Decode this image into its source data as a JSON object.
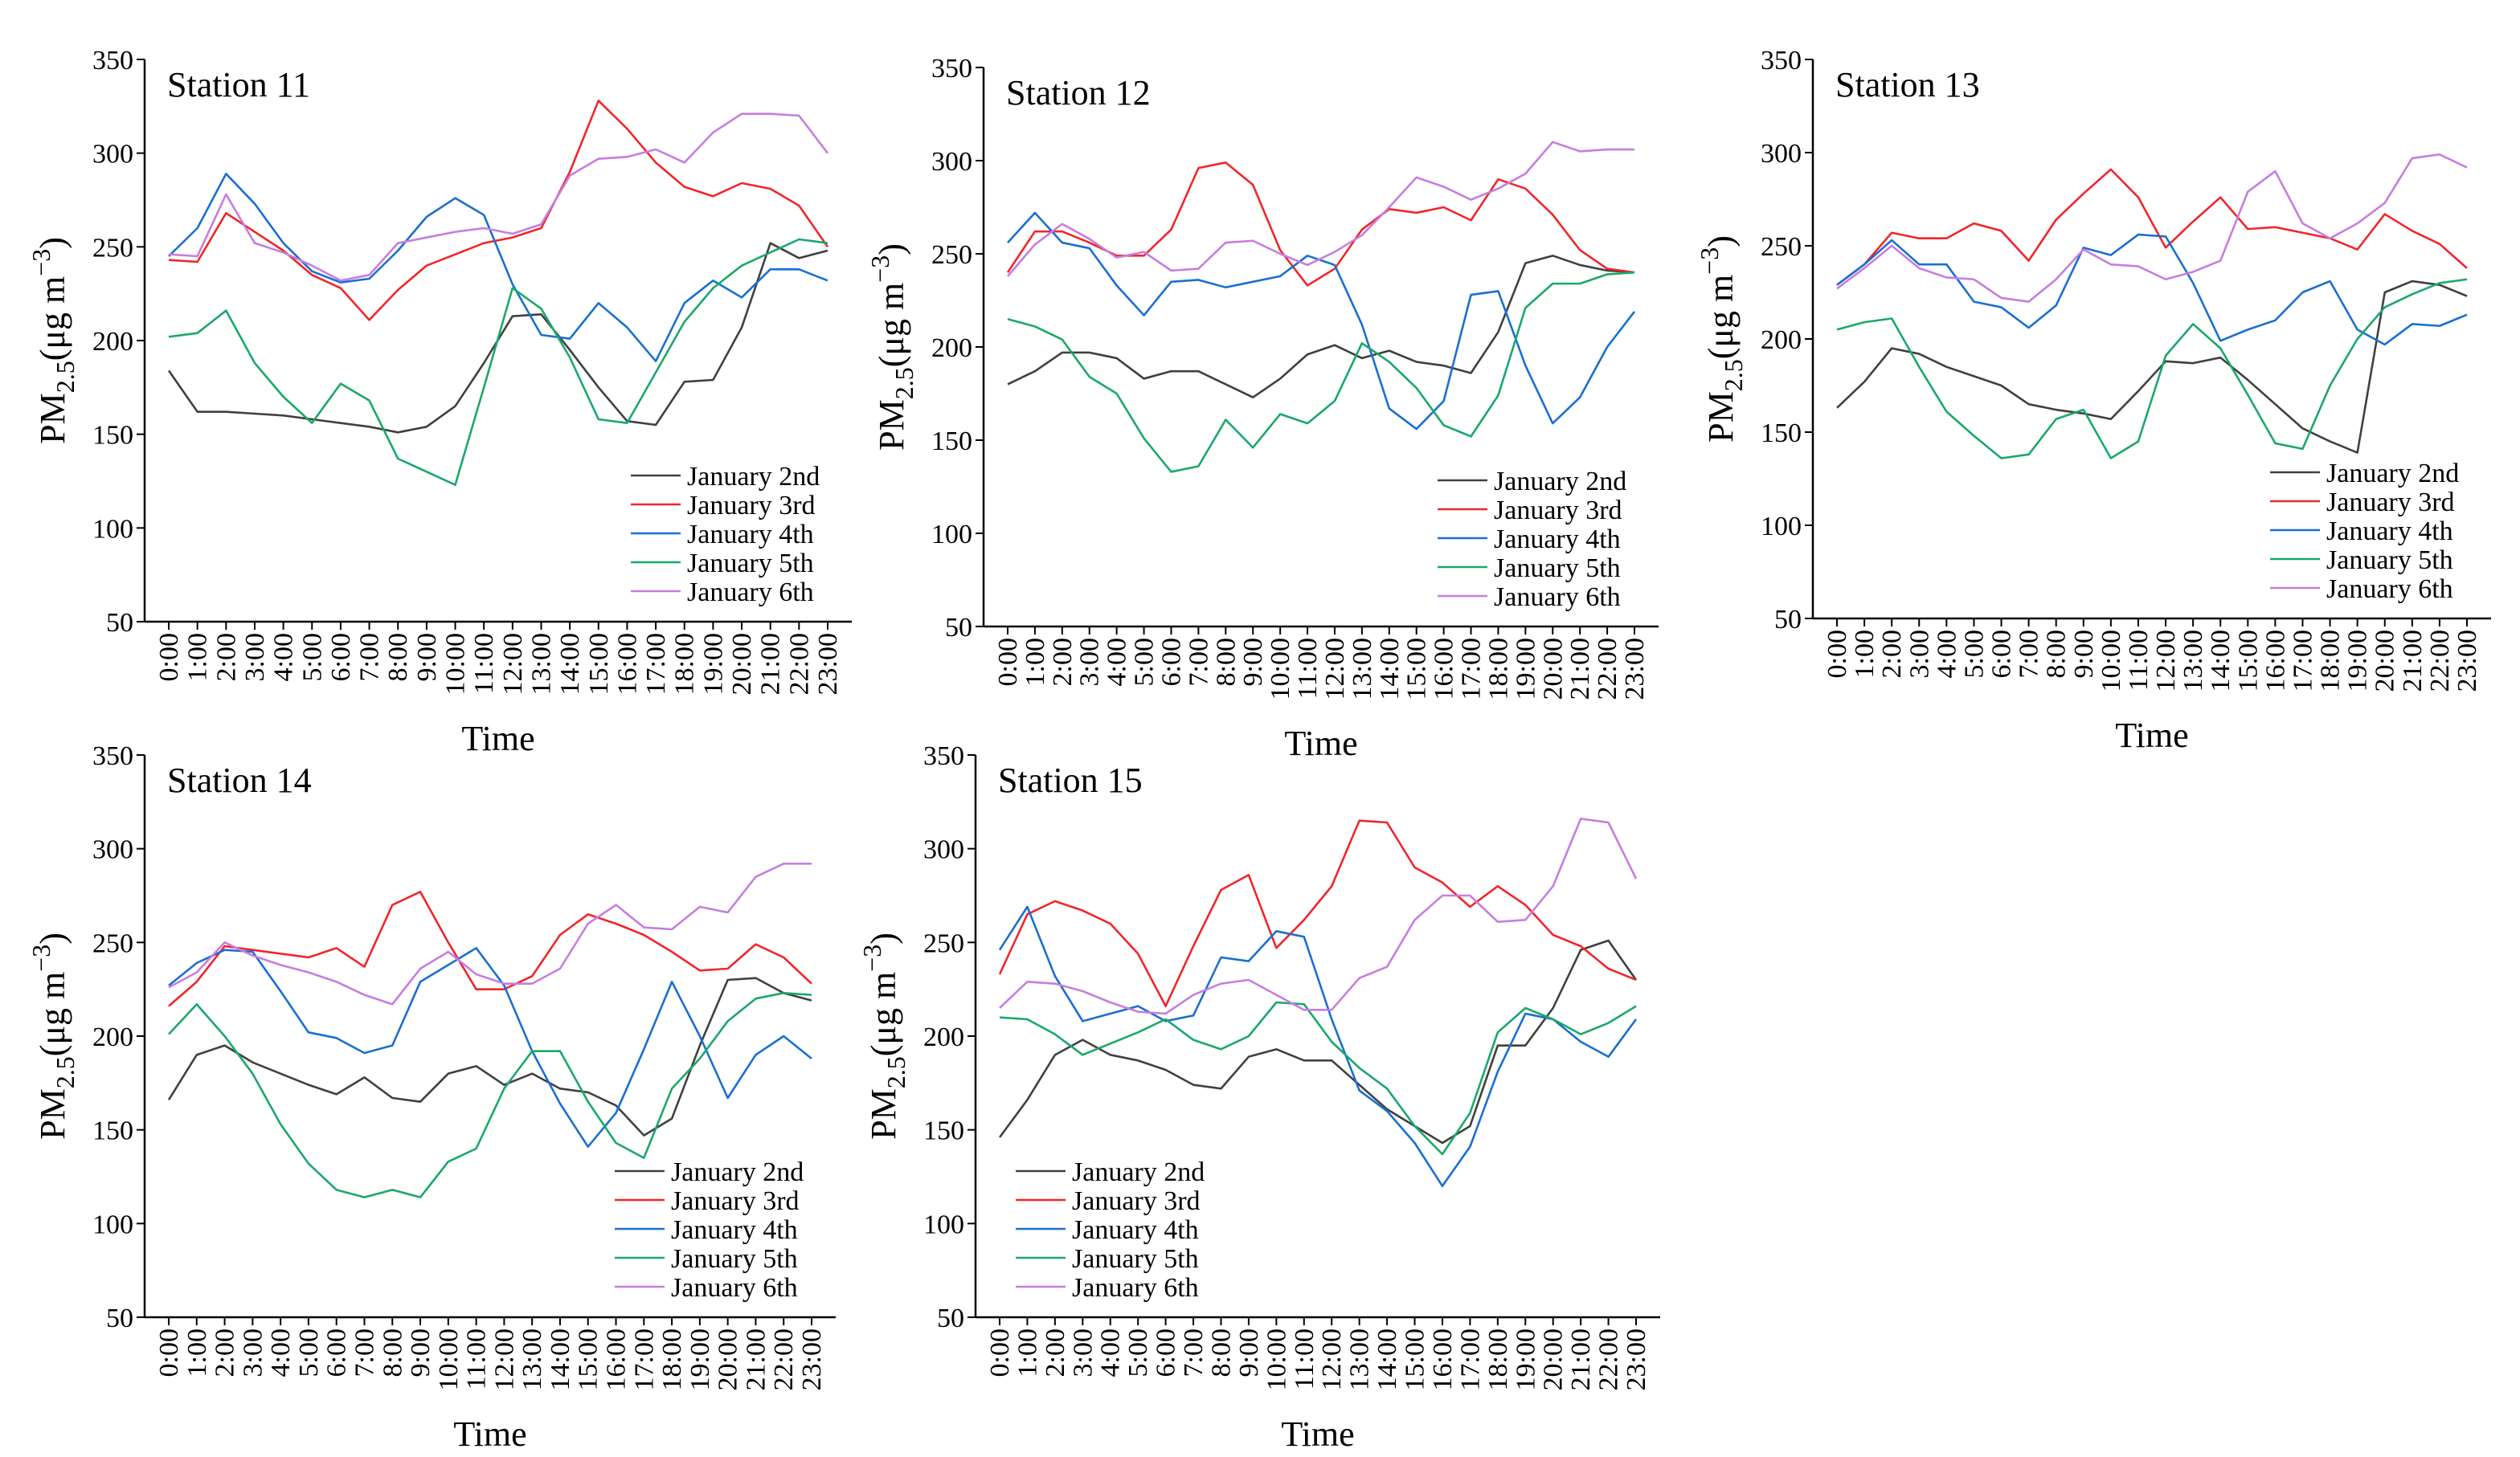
{
  "chart_data": [
    {
      "type": "line",
      "title": "Station 11",
      "xlabel": "Time",
      "ylabel": [
        "PM",
        "2.5",
        "(μg m",
        "−3",
        ")"
      ],
      "categories": [
        "0:00",
        "1:00",
        "2:00",
        "3:00",
        "4:00",
        "5:00",
        "6:00",
        "7:00",
        "8:00",
        "9:00",
        "10:00",
        "11:00",
        "12:00",
        "13:00",
        "14:00",
        "15:00",
        "16:00",
        "17:00",
        "18:00",
        "19:00",
        "20:00",
        "21:00",
        "22:00",
        "23:00"
      ],
      "ylim": [
        50,
        350
      ],
      "yticks": [
        50,
        100,
        150,
        200,
        250,
        300,
        350
      ],
      "legend": "lower right",
      "series": [
        {
          "name": "January 2nd",
          "color": "#404040",
          "values": [
            184,
            162,
            162,
            161,
            160,
            158,
            156,
            154,
            151,
            154,
            165,
            188,
            213,
            214,
            195,
            175,
            157,
            155,
            178,
            179,
            207,
            252,
            244,
            248
          ]
        },
        {
          "name": "January 3rd",
          "color": "#f0262a",
          "values": [
            243,
            242,
            268,
            258,
            248,
            235,
            228,
            211,
            227,
            240,
            246,
            252,
            255,
            260,
            290,
            328,
            313,
            295,
            282,
            277,
            284,
            281,
            272,
            250
          ]
        },
        {
          "name": "January 4th",
          "color": "#1a6fd1",
          "values": [
            245,
            260,
            289,
            273,
            252,
            237,
            231,
            233,
            248,
            266,
            276,
            267,
            230,
            203,
            201,
            220,
            207,
            189,
            220,
            232,
            223,
            238,
            238,
            232
          ]
        },
        {
          "name": "January 5th",
          "color": "#1aa86a",
          "values": [
            202,
            204,
            216,
            188,
            170,
            156,
            177,
            168,
            137,
            130,
            123,
            175,
            228,
            217,
            191,
            158,
            156,
            183,
            210,
            228,
            240,
            247,
            254,
            252
          ]
        },
        {
          "name": "January 6th",
          "color": "#c77de0",
          "values": [
            246,
            245,
            278,
            252,
            247,
            240,
            232,
            235,
            252,
            255,
            258,
            260,
            257,
            262,
            288,
            297,
            298,
            302,
            295,
            311,
            321,
            321,
            320,
            300
          ]
        }
      ]
    },
    {
      "type": "line",
      "title": "Station 12",
      "xlabel": "Time",
      "ylabel": [
        "PM",
        "2.5",
        "(μg m",
        "−3",
        ")"
      ],
      "categories": [
        "0:00",
        "1:00",
        "2:00",
        "3:00",
        "4:00",
        "5:00",
        "6:00",
        "7:00",
        "8:00",
        "9:00",
        "10:00",
        "11:00",
        "12:00",
        "13:00",
        "14:00",
        "15:00",
        "16:00",
        "17:00",
        "18:00",
        "19:00",
        "20:00",
        "21:00",
        "22:00",
        "23:00"
      ],
      "ylim": [
        50,
        350
      ],
      "yticks": [
        50,
        100,
        150,
        200,
        250,
        300,
        350
      ],
      "legend": "lower right",
      "series": [
        {
          "name": "January 2nd",
          "color": "#404040",
          "values": [
            180,
            187,
            197,
            197,
            194,
            183,
            187,
            187,
            180,
            173,
            183,
            196,
            201,
            194,
            198,
            192,
            190,
            186,
            208,
            245,
            249,
            244,
            241,
            240
          ]
        },
        {
          "name": "January 3rd",
          "color": "#f0262a",
          "values": [
            240,
            262,
            262,
            256,
            249,
            249,
            263,
            296,
            299,
            287,
            252,
            233,
            242,
            263,
            274,
            272,
            275,
            268,
            290,
            285,
            271,
            252,
            242,
            240
          ]
        },
        {
          "name": "January 4th",
          "color": "#1a6fd1",
          "values": [
            256,
            272,
            256,
            253,
            233,
            217,
            235,
            236,
            232,
            235,
            238,
            249,
            244,
            212,
            167,
            156,
            171,
            228,
            230,
            190,
            159,
            173,
            200,
            219
          ]
        },
        {
          "name": "January 5th",
          "color": "#1aa86a",
          "values": [
            215,
            211,
            204,
            184,
            175,
            151,
            133,
            136,
            161,
            146,
            164,
            159,
            171,
            202,
            192,
            178,
            158,
            152,
            174,
            221,
            234,
            234,
            239,
            240
          ]
        },
        {
          "name": "January 6th",
          "color": "#c77de0",
          "values": [
            238,
            255,
            266,
            258,
            248,
            251,
            241,
            242,
            256,
            257,
            250,
            244,
            251,
            260,
            275,
            291,
            286,
            279,
            285,
            293,
            310,
            305,
            306,
            306
          ]
        }
      ]
    },
    {
      "type": "line",
      "title": "Station 13",
      "xlabel": "Time",
      "ylabel": [
        "PM",
        "2.5",
        "(μg m",
        "−3",
        ")"
      ],
      "categories": [
        "0:00",
        "1:00",
        "2:00",
        "3:00",
        "4:00",
        "5:00",
        "6:00",
        "7:00",
        "8:00",
        "9:00",
        "10:00",
        "11:00",
        "12:00",
        "13:00",
        "14:00",
        "15:00",
        "16:00",
        "17:00",
        "18:00",
        "19:00",
        "20:00",
        "21:00",
        "22:00",
        "23:00"
      ],
      "ylim": [
        50,
        350
      ],
      "yticks": [
        50,
        100,
        150,
        200,
        250,
        300,
        350
      ],
      "legend": "lower right",
      "series": [
        {
          "name": "January 2nd",
          "color": "#404040",
          "values": [
            163,
            177,
            195,
            192,
            185,
            180,
            175,
            165,
            162,
            160,
            157,
            172,
            188,
            187,
            190,
            178,
            165,
            152,
            145,
            139,
            225,
            231,
            229,
            223
          ]
        },
        {
          "name": "January 3rd",
          "color": "#f0262a",
          "values": [
            229,
            240,
            257,
            254,
            254,
            262,
            258,
            242,
            264,
            278,
            291,
            276,
            249,
            263,
            276,
            259,
            260,
            257,
            254,
            248,
            267,
            258,
            251,
            238
          ]
        },
        {
          "name": "January 4th",
          "color": "#1a6fd1",
          "values": [
            229,
            240,
            253,
            240,
            240,
            220,
            217,
            206,
            218,
            249,
            245,
            256,
            255,
            230,
            199,
            205,
            210,
            225,
            231,
            205,
            197,
            208,
            207,
            213
          ]
        },
        {
          "name": "January 5th",
          "color": "#1aa86a",
          "values": [
            205,
            209,
            211,
            185,
            161,
            148,
            136,
            138,
            157,
            162,
            136,
            145,
            191,
            208,
            195,
            170,
            144,
            141,
            175,
            200,
            217,
            224,
            230,
            232
          ]
        },
        {
          "name": "January 6th",
          "color": "#c77de0",
          "values": [
            227,
            238,
            250,
            238,
            233,
            232,
            222,
            220,
            232,
            248,
            240,
            239,
            232,
            236,
            242,
            279,
            290,
            262,
            254,
            262,
            273,
            297,
            299,
            292
          ]
        }
      ]
    },
    {
      "type": "line",
      "title": "Station 14",
      "xlabel": "Time",
      "ylabel": [
        "PM",
        "2.5",
        "(μg m",
        "−3",
        ")"
      ],
      "categories": [
        "0:00",
        "1:00",
        "2:00",
        "3:00",
        "4:00",
        "5:00",
        "6:00",
        "7:00",
        "8:00",
        "9:00",
        "10:00",
        "11:00",
        "12:00",
        "13:00",
        "14:00",
        "15:00",
        "16:00",
        "17:00",
        "18:00",
        "19:00",
        "20:00",
        "21:00",
        "22:00",
        "23:00"
      ],
      "ylim": [
        50,
        350
      ],
      "yticks": [
        50,
        100,
        150,
        200,
        250,
        300,
        350
      ],
      "legend": "lower right",
      "series": [
        {
          "name": "January 2nd",
          "color": "#404040",
          "values": [
            166,
            190,
            195,
            186,
            180,
            174,
            169,
            178,
            167,
            165,
            180,
            184,
            174,
            180,
            172,
            170,
            163,
            147,
            156,
            195,
            230,
            231,
            223,
            219
          ]
        },
        {
          "name": "January 3rd",
          "color": "#f0262a",
          "values": [
            216,
            229,
            248,
            246,
            244,
            242,
            247,
            237,
            270,
            277,
            250,
            225,
            225,
            232,
            254,
            265,
            260,
            254,
            245,
            235,
            236,
            249,
            242,
            228
          ]
        },
        {
          "name": "January 4th",
          "color": "#1a6fd1",
          "values": [
            227,
            239,
            246,
            245,
            224,
            202,
            199,
            191,
            195,
            229,
            238,
            247,
            227,
            192,
            164,
            141,
            159,
            193,
            229,
            200,
            167,
            190,
            200,
            188
          ]
        },
        {
          "name": "January 5th",
          "color": "#1aa86a",
          "values": [
            201,
            217,
            200,
            180,
            153,
            132,
            118,
            114,
            118,
            114,
            133,
            140,
            172,
            192,
            192,
            165,
            143,
            135,
            172,
            188,
            208,
            220,
            223,
            222
          ]
        },
        {
          "name": "January 6th",
          "color": "#c77de0",
          "values": [
            226,
            234,
            250,
            243,
            238,
            234,
            229,
            222,
            217,
            236,
            245,
            233,
            228,
            228,
            236,
            260,
            270,
            258,
            257,
            269,
            266,
            285,
            292,
            292
          ]
        }
      ]
    },
    {
      "type": "line",
      "title": "Station 15",
      "xlabel": "Time",
      "ylabel": [
        "PM",
        "2.5",
        "(μg m",
        "−3",
        ")"
      ],
      "categories": [
        "0:00",
        "1:00",
        "2:00",
        "3:00",
        "4:00",
        "5:00",
        "6:00",
        "7:00",
        "8:00",
        "9:00",
        "10:00",
        "11:00",
        "12:00",
        "13:00",
        "14:00",
        "15:00",
        "16:00",
        "17:00",
        "18:00",
        "19:00",
        "20:00",
        "21:00",
        "22:00",
        "23:00"
      ],
      "ylim": [
        50,
        350
      ],
      "yticks": [
        50,
        100,
        150,
        200,
        250,
        300,
        350
      ],
      "legend": "lower left",
      "series": [
        {
          "name": "January 2nd",
          "color": "#404040",
          "values": [
            146,
            166,
            190,
            198,
            190,
            187,
            182,
            174,
            172,
            189,
            193,
            187,
            187,
            174,
            161,
            152,
            143,
            152,
            195,
            195,
            215,
            246,
            251,
            230
          ]
        },
        {
          "name": "January 3rd",
          "color": "#f0262a",
          "values": [
            233,
            265,
            272,
            267,
            260,
            244,
            216,
            248,
            278,
            286,
            247,
            262,
            280,
            315,
            314,
            290,
            282,
            269,
            280,
            270,
            254,
            248,
            236,
            230
          ]
        },
        {
          "name": "January 4th",
          "color": "#1a6fd1",
          "values": [
            246,
            269,
            232,
            208,
            212,
            216,
            208,
            211,
            242,
            240,
            256,
            253,
            209,
            171,
            160,
            143,
            120,
            141,
            181,
            212,
            209,
            197,
            189,
            209
          ]
        },
        {
          "name": "January 5th",
          "color": "#1aa86a",
          "values": [
            210,
            209,
            201,
            190,
            196,
            202,
            209,
            198,
            193,
            200,
            218,
            217,
            197,
            183,
            172,
            152,
            137,
            159,
            202,
            215,
            209,
            201,
            207,
            216
          ]
        },
        {
          "name": "January 6th",
          "color": "#c77de0",
          "values": [
            215,
            229,
            228,
            224,
            218,
            213,
            212,
            222,
            228,
            230,
            222,
            214,
            214,
            231,
            237,
            262,
            275,
            275,
            261,
            262,
            280,
            316,
            314,
            284
          ]
        }
      ]
    }
  ]
}
